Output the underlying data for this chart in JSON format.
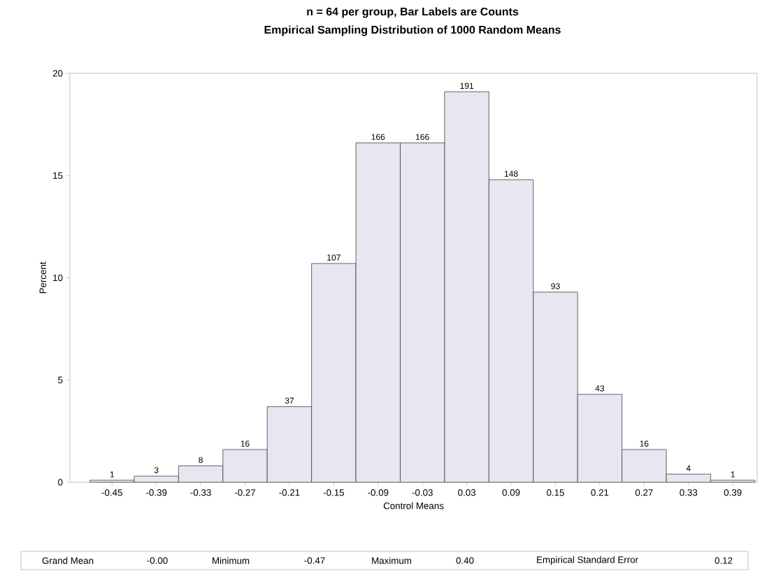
{
  "chart_data": {
    "type": "histogram",
    "title": "n = 64 per group, Bar Labels are Counts",
    "subtitle": "Empirical Sampling Distribution of 1000 Random Means",
    "xlabel": "Control Means",
    "ylabel": "Percent",
    "bins": [
      -0.48,
      -0.42,
      -0.36,
      -0.3,
      -0.24,
      -0.18,
      -0.12,
      -0.06,
      0.0,
      0.06,
      0.12,
      0.18,
      0.24,
      0.3,
      0.36,
      0.42
    ],
    "values": [
      0.1,
      0.3,
      0.8,
      1.6,
      3.7,
      10.7,
      16.6,
      16.6,
      19.1,
      14.8,
      9.3,
      4.3,
      1.6,
      0.4,
      0.1
    ],
    "color": "#e6e7f0",
    "xlim": [
      -0.507,
      0.423
    ],
    "ylim": [
      0,
      20
    ],
    "xticks": [
      -0.45,
      -0.39,
      -0.33,
      -0.27,
      -0.21,
      -0.15,
      -0.09,
      -0.03,
      0.03,
      0.09,
      0.15,
      0.21,
      0.27,
      0.33,
      0.39
    ],
    "yticks": [
      0,
      5,
      10,
      15,
      20
    ],
    "annotations": [
      "Grand Mean",
      "-0.00",
      "Minimum",
      "-0.47",
      "Maximum",
      "0.40",
      "Empirical Standard Error",
      "0.12",
      {
        "text": "1",
        "x": -0.45,
        "y": 0.1
      },
      {
        "text": "3",
        "x": -0.39,
        "y": 0.3
      },
      {
        "text": "8",
        "x": -0.33,
        "y": 0.8
      },
      {
        "text": "16",
        "x": -0.27,
        "y": 1.6
      },
      {
        "text": "37",
        "x": -0.21,
        "y": 3.7
      },
      {
        "text": "107",
        "x": -0.15,
        "y": 10.7
      },
      {
        "text": "166",
        "x": -0.09,
        "y": 16.6
      },
      {
        "text": "166",
        "x": -0.03,
        "y": 16.6
      },
      {
        "text": "191",
        "x": 0.03,
        "y": 19.1
      },
      {
        "text": "148",
        "x": 0.09,
        "y": 14.8
      },
      {
        "text": "93",
        "x": 0.15,
        "y": 9.3
      },
      {
        "text": "43",
        "x": 0.21,
        "y": 4.3
      },
      {
        "text": "16",
        "x": 0.27,
        "y": 1.6
      },
      {
        "text": "4",
        "x": 0.33,
        "y": 0.4
      },
      {
        "text": "1",
        "x": 0.39,
        "y": 0.1
      }
    ]
  }
}
